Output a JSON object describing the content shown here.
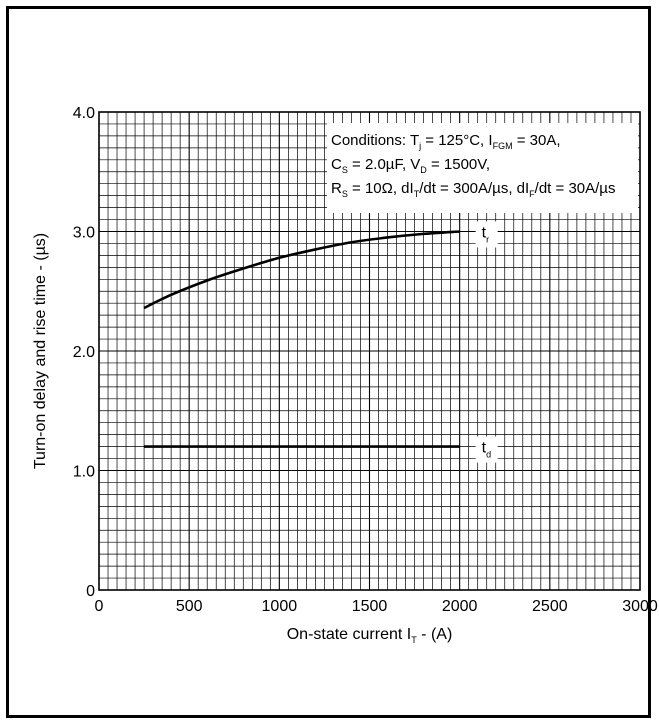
{
  "chart_data": {
    "type": "line",
    "title": "",
    "xlabel": "On-state current I",
    "xlabel_sub": "T",
    "xlabel_tail": " - (A)",
    "ylabel": "Turn-on delay and rise time - (µs)",
    "xlim": [
      0,
      3000
    ],
    "ylim": [
      0,
      4.0
    ],
    "x_ticks": [
      0,
      500,
      1000,
      1500,
      2000,
      2500,
      3000
    ],
    "x_tick_labels": [
      "0",
      "500",
      "1000",
      "1500",
      "2000",
      "2500",
      "3000"
    ],
    "y_ticks": [
      0,
      1.0,
      2.0,
      3.0,
      4.0
    ],
    "y_tick_labels": [
      "0",
      "1.0",
      "2.0",
      "3.0",
      "4.0"
    ],
    "grid": true,
    "series": [
      {
        "name": "t",
        "name_sub": "r",
        "x": [
          250,
          400,
          600,
          800,
          1000,
          1200,
          1400,
          1600,
          1800,
          2000
        ],
        "y": [
          2.36,
          2.47,
          2.59,
          2.69,
          2.78,
          2.85,
          2.91,
          2.95,
          2.98,
          3.0
        ]
      },
      {
        "name": "t",
        "name_sub": "d",
        "x": [
          250,
          2000
        ],
        "y": [
          1.2,
          1.2
        ]
      }
    ],
    "conditions": {
      "line1": [
        {
          "t": "Conditions: T"
        },
        {
          "t": "j",
          "sub": true
        },
        {
          "t": " = 125°C, I"
        },
        {
          "t": "FGM",
          "sub": true
        },
        {
          "t": " = 30A,"
        }
      ],
      "line2": [
        {
          "t": "C"
        },
        {
          "t": "S",
          "sub": true
        },
        {
          "t": " = 2.0µF, V"
        },
        {
          "t": "D",
          "sub": true
        },
        {
          "t": " = 1500V,"
        }
      ],
      "line3": [
        {
          "t": "R"
        },
        {
          "t": "S",
          "sub": true
        },
        {
          "t": " = 10Ω, dI"
        },
        {
          "t": "T",
          "sub": true
        },
        {
          "t": "/dt = 300A/µs, dI"
        },
        {
          "t": "F",
          "sub": true
        },
        {
          "t": "/dt = 30A/µs"
        }
      ]
    }
  }
}
